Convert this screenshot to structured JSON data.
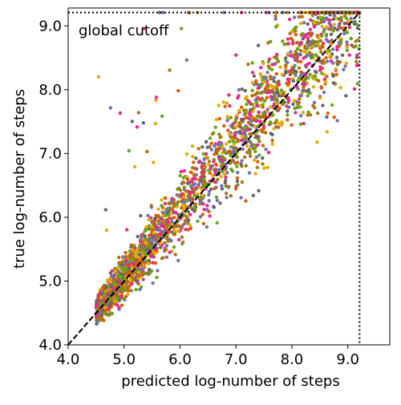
{
  "chart_data": {
    "type": "scatter",
    "title": "",
    "xlabel": "predicted log-number of steps",
    "ylabel": "true log-number of steps",
    "xlim": [
      4.0,
      9.75
    ],
    "ylim": [
      4.0,
      9.28
    ],
    "xticks": [
      "4.0",
      "5.0",
      "6.0",
      "7.0",
      "8.0",
      "9.0"
    ],
    "yticks": [
      "4.0",
      "5.0",
      "6.0",
      "7.0",
      "8.0",
      "9.0"
    ],
    "grid": false,
    "legend": "none",
    "annotation": "global cutoff",
    "cutoff_value": 9.21,
    "reference_line": {
      "from": [
        4.0,
        4.0
      ],
      "to": [
        9.21,
        9.21
      ],
      "style": "dashed",
      "color": "#000000"
    },
    "point_colors": [
      "#666666",
      "#d95f02",
      "#7570b3",
      "#e6ab02",
      "#66a61e",
      "#e7298a",
      "#a6761d"
    ],
    "point_count_approx": 2600,
    "distribution": {
      "x_range": [
        4.45,
        9.21
      ],
      "lower_cluster_center": [
        5.0,
        5.0
      ],
      "spread_increases_with_x": true,
      "bias": "true values exceed predictions at high x",
      "cap": 9.21
    }
  }
}
